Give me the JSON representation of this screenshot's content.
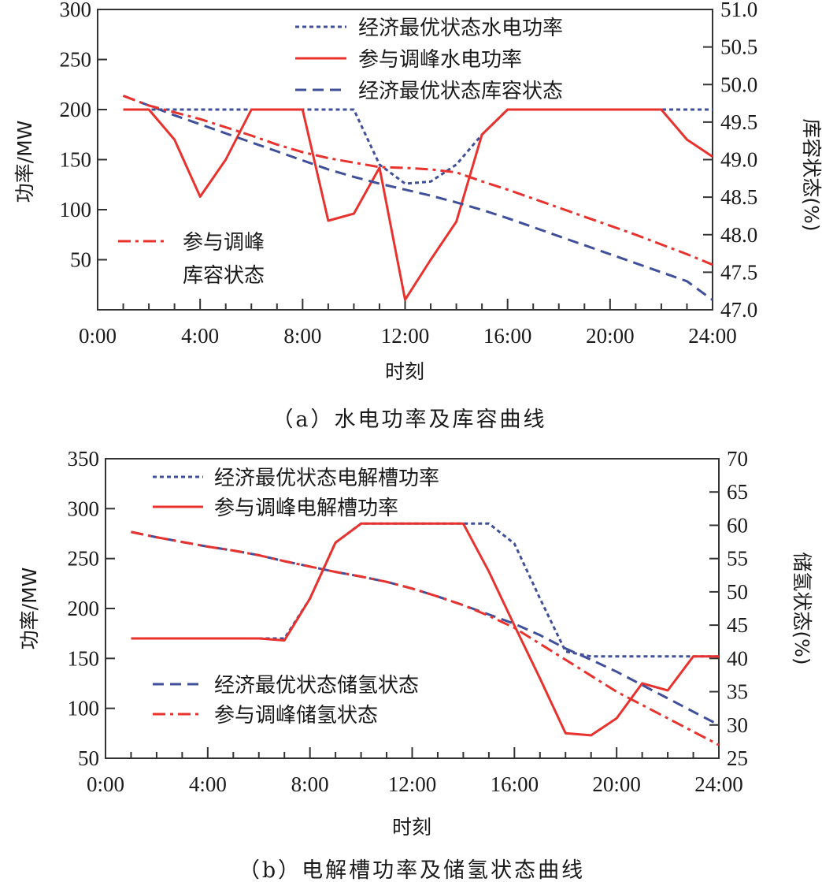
{
  "colors": {
    "blue": "#3f4f9a",
    "red": "#e8322e",
    "axis": "#333333"
  },
  "chart_data": [
    {
      "id": "a",
      "type": "line",
      "caption": "（a）水电功率及库容曲线",
      "xlabel": "时刻",
      "ylabel": "功率/MW",
      "ylabel_right": "库容状态(%)",
      "x_tick_labels": [
        "0:00",
        "4:00",
        "8:00",
        "12:00",
        "16:00",
        "20:00",
        "24:00"
      ],
      "y_tick_labels": [
        "50",
        "100",
        "150",
        "200",
        "250",
        "300"
      ],
      "y_right_tick_labels": [
        "47.0",
        "47.5",
        "48.0",
        "48.5",
        "49.0",
        "49.5",
        "50.0",
        "50.5",
        "51.0"
      ],
      "xlim": [
        0,
        24
      ],
      "ylim": [
        0,
        300
      ],
      "ylim_right": [
        47.0,
        51.0
      ],
      "x": [
        1,
        2,
        3,
        4,
        5,
        6,
        7,
        8,
        9,
        10,
        11,
        12,
        13,
        14,
        15,
        16,
        17,
        18,
        19,
        20,
        21,
        22,
        23,
        24
      ],
      "series": [
        {
          "name": "经济最优状态水电功率",
          "axis": "left",
          "style": "dotted",
          "color": "blue",
          "values": [
            200,
            200,
            200,
            200,
            200,
            200,
            200,
            200,
            200,
            200,
            145,
            126,
            128,
            145,
            175,
            200,
            200,
            200,
            200,
            200,
            200,
            200,
            200,
            200
          ]
        },
        {
          "name": "参与调峰水电功率",
          "axis": "left",
          "style": "solid",
          "color": "red",
          "values": [
            200,
            200,
            170,
            113,
            150,
            200,
            200,
            200,
            89,
            96,
            142,
            10,
            50,
            88,
            175,
            200,
            200,
            200,
            200,
            200,
            200,
            200,
            170,
            153
          ]
        },
        {
          "name": "经济最优状态库容状态",
          "axis": "right",
          "style": "dashed",
          "color": "blue",
          "values": [
            49.85,
            49.72,
            49.59,
            49.47,
            49.35,
            49.23,
            49.11,
            48.99,
            48.87,
            48.77,
            48.68,
            48.6,
            48.52,
            48.43,
            48.33,
            48.22,
            48.1,
            47.98,
            47.86,
            47.74,
            47.62,
            47.5,
            47.38,
            47.13
          ]
        },
        {
          "name": "参与调峰库容状态",
          "axis": "right",
          "style": "dashdot",
          "color": "red",
          "values": [
            49.85,
            49.72,
            49.63,
            49.54,
            49.43,
            49.32,
            49.2,
            49.1,
            49.02,
            48.96,
            48.9,
            48.89,
            48.87,
            48.83,
            48.71,
            48.6,
            48.48,
            48.36,
            48.24,
            48.12,
            48.0,
            47.87,
            47.74,
            47.6
          ]
        }
      ],
      "legend": {
        "top": [
          "经济最优状态水电功率",
          "参与调峰水电功率",
          "经济最优状态库容状态"
        ],
        "bottom_line1": "参与调峰",
        "bottom_line2": "库容状态"
      }
    },
    {
      "id": "b",
      "type": "line",
      "caption": "（b）电解槽功率及储氢状态曲线",
      "xlabel": "时刻",
      "ylabel": "功率/MW",
      "ylabel_right": "储氢状态(%)",
      "x_tick_labels": [
        "0:00",
        "4:00",
        "8:00",
        "12:00",
        "16:00",
        "20:00",
        "24:00"
      ],
      "y_tick_labels": [
        "50",
        "100",
        "150",
        "200",
        "250",
        "300",
        "350"
      ],
      "y_right_tick_labels": [
        "25",
        "30",
        "35",
        "40",
        "45",
        "50",
        "55",
        "60",
        "65",
        "70"
      ],
      "xlim": [
        0,
        24
      ],
      "ylim": [
        50,
        350
      ],
      "ylim_right": [
        25,
        70
      ],
      "x": [
        1,
        2,
        3,
        4,
        5,
        6,
        7,
        8,
        9,
        10,
        11,
        12,
        13,
        14,
        15,
        16,
        17,
        18,
        19,
        20,
        21,
        22,
        23,
        24
      ],
      "series": [
        {
          "name": "经济最优状态电解槽功率",
          "axis": "left",
          "style": "dotted",
          "color": "blue",
          "values": [
            170,
            170,
            170,
            170,
            170,
            170,
            170,
            210,
            266,
            285,
            285,
            285,
            285,
            285,
            285,
            265,
            210,
            157,
            152,
            152,
            152,
            152,
            152,
            152
          ]
        },
        {
          "name": "参与调峰电解槽功率",
          "axis": "left",
          "style": "solid",
          "color": "red",
          "values": [
            170,
            170,
            170,
            170,
            170,
            170,
            168,
            210,
            266,
            285,
            285,
            285,
            285,
            285,
            237,
            183,
            130,
            75,
            73,
            90,
            125,
            118,
            152,
            152
          ]
        },
        {
          "name": "经济最优状态储氢状态",
          "axis": "right",
          "style": "dashed",
          "color": "blue",
          "values": [
            59.0,
            58.2,
            57.5,
            56.8,
            56.2,
            55.5,
            54.6,
            53.8,
            53.0,
            52.3,
            51.5,
            50.5,
            49.3,
            48.0,
            46.6,
            45.2,
            43.5,
            41.5,
            39.8,
            38.0,
            36.0,
            34.0,
            32.0,
            30.0
          ]
        },
        {
          "name": "参与调峰储氢状态",
          "axis": "right",
          "style": "dashdot",
          "color": "red",
          "values": [
            59.0,
            58.2,
            57.5,
            56.8,
            56.2,
            55.5,
            54.6,
            53.8,
            53.0,
            52.3,
            51.5,
            50.5,
            49.3,
            48.0,
            46.4,
            44.6,
            42.2,
            39.8,
            37.4,
            35.0,
            33.0,
            31.0,
            29.0,
            27.0
          ]
        }
      ],
      "legend": {
        "top": [
          "经济最优状态电解槽功率",
          "参与调峰电解槽功率"
        ],
        "bottom": [
          "经济最优状态储氢状态",
          "参与调峰储氢状态"
        ]
      }
    }
  ]
}
